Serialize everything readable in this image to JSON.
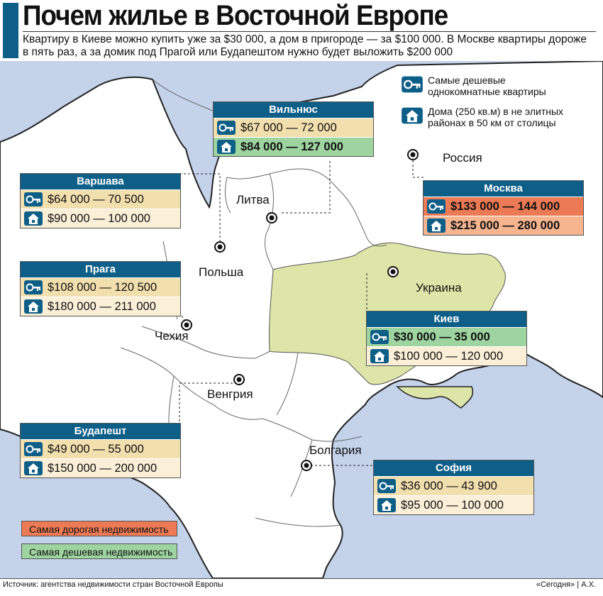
{
  "title": "Почем жилье в Восточной Европе",
  "subtitle": "Квартиру в Киеве можно купить уже за $30 000, а дом в пригороде — за $100 000. В Москве квартиры дороже в пять раз, а за домик под Прагой или Будапештом нужно будет выложить $200 000",
  "legend": {
    "apartments": "Самые дешевые однокомнатные квартиры",
    "houses": "Дома (250 кв.м) в не элитных районах в 50 км от столицы",
    "most_expensive": "Самая дорогая недвижимость",
    "cheapest": "Самая дешевая недвижимость",
    "most_expensive_color": "#ec7a55",
    "cheapest_color": "#9ed4a0"
  },
  "country_labels": {
    "russia": "Россия",
    "lithuania": "Литва",
    "poland": "Польша",
    "ukraine": "Украина",
    "czechia": "Чехия",
    "hungary": "Венгрия",
    "bulgaria": "Болгария"
  },
  "cities": {
    "vilnius": {
      "name": "Вильнюс",
      "apartment": "$67 000 — 72 000",
      "house": "$84 000 — 127 000"
    },
    "warsaw": {
      "name": "Варшава",
      "apartment": "$64 000 — 70 500",
      "house": "$90 000 — 100 000"
    },
    "moscow": {
      "name": "Москва",
      "apartment": "$133 000 — 144 000",
      "house": "$215 000 — 280 000"
    },
    "prague": {
      "name": "Прага",
      "apartment": "$108 000 — 120 500",
      "house": "$180 000 — 211 000"
    },
    "kyiv": {
      "name": "Киев",
      "apartment": "$30 000 — 35 000",
      "house": "$100 000 — 120 000"
    },
    "budapest": {
      "name": "Будапешт",
      "apartment": "$49 000 — 55 000",
      "house": "$150 000 — 200 000"
    },
    "sofia": {
      "name": "София",
      "apartment": "$36 000 — 43 900",
      "house": "$95 000 — 100 000"
    }
  },
  "footer": {
    "source": "Источник: агентства недвижимости стран Восточной Европы",
    "credit": "«Сегодня» | А.Х."
  },
  "colors": {
    "sea": "#c4d2ea",
    "land": "#ffffff",
    "ukraine": "#dde6a8",
    "header": "#0e5f88"
  }
}
